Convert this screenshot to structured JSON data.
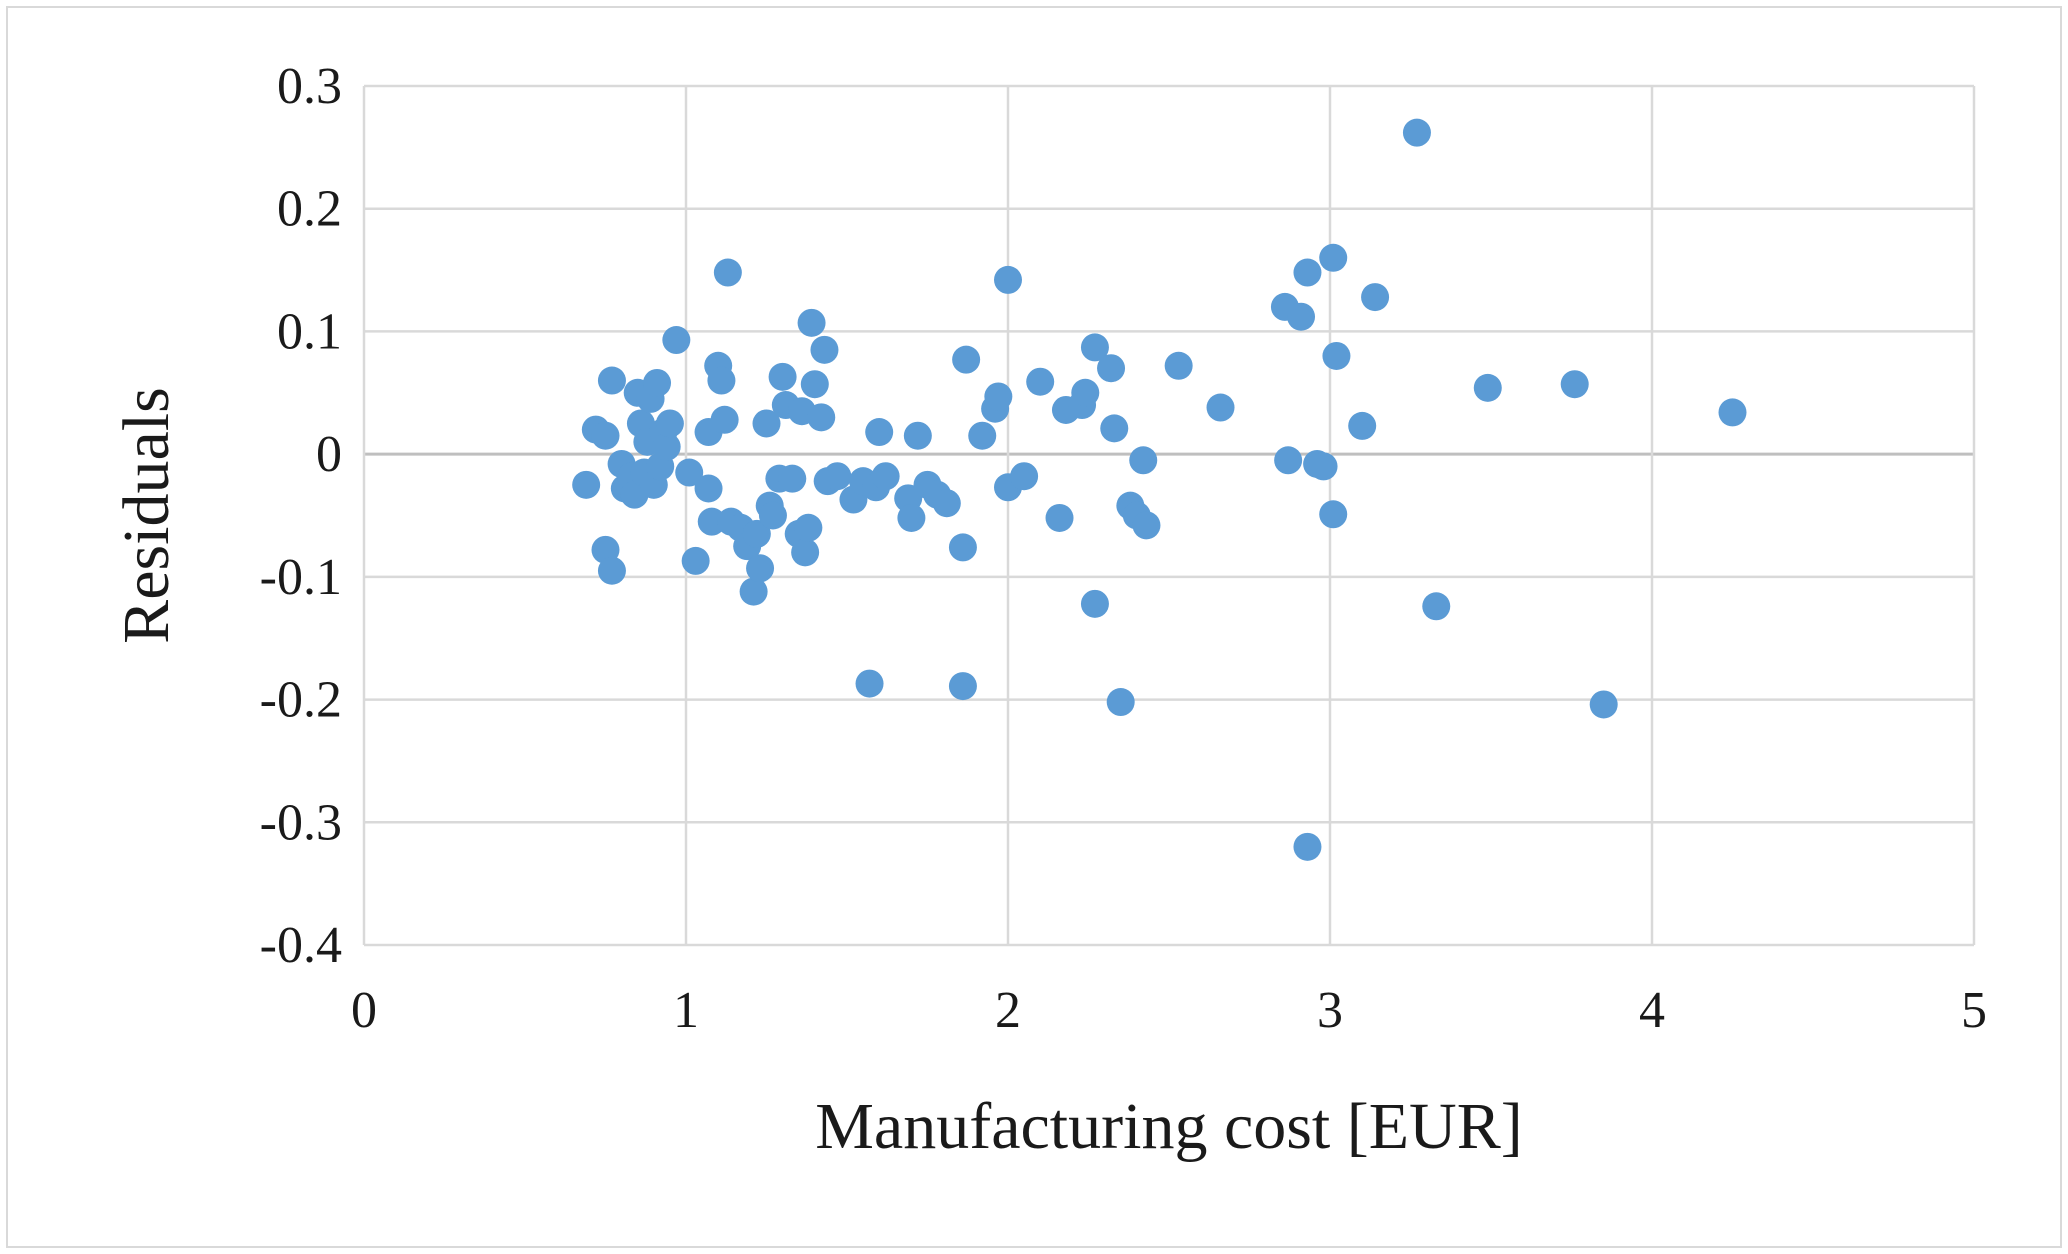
{
  "chart_data": {
    "type": "scatter",
    "title": "",
    "xlabel": "Manufacturing cost [EUR]",
    "ylabel": "Residuals",
    "xlim": [
      0,
      5
    ],
    "ylim": [
      -0.4,
      0.3
    ],
    "xticks": [
      0,
      1,
      2,
      3,
      4,
      5
    ],
    "yticks": [
      -0.4,
      -0.3,
      -0.2,
      -0.1,
      0,
      0.1,
      0.2,
      0.3
    ],
    "xtick_labels": [
      "0",
      "1",
      "2",
      "3",
      "4",
      "5"
    ],
    "ytick_labels": [
      "-0.4",
      "-0.3",
      "-0.2",
      "-0.1",
      "0",
      "0.1",
      "0.2",
      "0.3"
    ],
    "grid": true,
    "legend": "none",
    "colors": {
      "points": "#5b9bd5",
      "grid": "#d9d9d9",
      "zero_line": "#bfbfbf"
    },
    "points": [
      [
        0.69,
        -0.025
      ],
      [
        0.72,
        0.02
      ],
      [
        0.75,
        0.015
      ],
      [
        0.77,
        0.06
      ],
      [
        0.75,
        -0.078
      ],
      [
        0.77,
        -0.095
      ],
      [
        0.8,
        -0.008
      ],
      [
        0.81,
        -0.028
      ],
      [
        0.83,
        -0.018
      ],
      [
        0.84,
        -0.033
      ],
      [
        0.85,
        0.05
      ],
      [
        0.86,
        0.025
      ],
      [
        0.87,
        -0.015
      ],
      [
        0.88,
        0.01
      ],
      [
        0.89,
        0.045
      ],
      [
        0.9,
        -0.025
      ],
      [
        0.91,
        0.058
      ],
      [
        0.92,
        -0.01
      ],
      [
        0.93,
        0.018
      ],
      [
        0.94,
        0.006
      ],
      [
        0.95,
        0.025
      ],
      [
        0.97,
        0.093
      ],
      [
        1.01,
        -0.015
      ],
      [
        1.03,
        -0.087
      ],
      [
        1.07,
        0.018
      ],
      [
        1.07,
        -0.028
      ],
      [
        1.08,
        -0.055
      ],
      [
        1.1,
        0.072
      ],
      [
        1.11,
        0.06
      ],
      [
        1.12,
        0.028
      ],
      [
        1.13,
        0.148
      ],
      [
        1.14,
        -0.055
      ],
      [
        1.17,
        -0.06
      ],
      [
        1.19,
        -0.075
      ],
      [
        1.21,
        -0.112
      ],
      [
        1.22,
        -0.065
      ],
      [
        1.23,
        -0.093
      ],
      [
        1.25,
        0.025
      ],
      [
        1.26,
        -0.042
      ],
      [
        1.27,
        -0.05
      ],
      [
        1.29,
        -0.02
      ],
      [
        1.3,
        0.063
      ],
      [
        1.31,
        0.04
      ],
      [
        1.33,
        -0.02
      ],
      [
        1.35,
        -0.065
      ],
      [
        1.36,
        0.035
      ],
      [
        1.37,
        -0.08
      ],
      [
        1.38,
        -0.06
      ],
      [
        1.39,
        0.107
      ],
      [
        1.4,
        0.057
      ],
      [
        1.42,
        0.03
      ],
      [
        1.43,
        0.085
      ],
      [
        1.44,
        -0.022
      ],
      [
        1.47,
        -0.018
      ],
      [
        1.52,
        -0.037
      ],
      [
        1.55,
        -0.022
      ],
      [
        1.57,
        -0.187
      ],
      [
        1.59,
        -0.027
      ],
      [
        1.6,
        0.018
      ],
      [
        1.62,
        -0.018
      ],
      [
        1.69,
        -0.036
      ],
      [
        1.7,
        -0.052
      ],
      [
        1.72,
        0.015
      ],
      [
        1.75,
        -0.025
      ],
      [
        1.78,
        -0.033
      ],
      [
        1.81,
        -0.04
      ],
      [
        1.86,
        -0.076
      ],
      [
        1.86,
        -0.189
      ],
      [
        1.87,
        0.077
      ],
      [
        1.92,
        0.015
      ],
      [
        1.96,
        0.037
      ],
      [
        1.97,
        0.047
      ],
      [
        2.0,
        0.142
      ],
      [
        2.0,
        -0.027
      ],
      [
        2.05,
        -0.018
      ],
      [
        2.1,
        0.059
      ],
      [
        2.16,
        -0.052
      ],
      [
        2.18,
        0.036
      ],
      [
        2.23,
        0.04
      ],
      [
        2.24,
        0.05
      ],
      [
        2.27,
        0.087
      ],
      [
        2.27,
        -0.122
      ],
      [
        2.32,
        0.07
      ],
      [
        2.33,
        0.021
      ],
      [
        2.35,
        -0.202
      ],
      [
        2.38,
        -0.042
      ],
      [
        2.4,
        -0.05
      ],
      [
        2.42,
        -0.005
      ],
      [
        2.43,
        -0.058
      ],
      [
        2.53,
        0.072
      ],
      [
        2.66,
        0.038
      ],
      [
        2.86,
        0.12
      ],
      [
        2.87,
        -0.005
      ],
      [
        2.91,
        0.112
      ],
      [
        2.93,
        0.148
      ],
      [
        2.93,
        -0.32
      ],
      [
        2.96,
        -0.008
      ],
      [
        2.98,
        -0.01
      ],
      [
        3.01,
        0.16
      ],
      [
        3.01,
        -0.049
      ],
      [
        3.02,
        0.08
      ],
      [
        3.1,
        0.023
      ],
      [
        3.14,
        0.128
      ],
      [
        3.27,
        0.262
      ],
      [
        3.33,
        -0.124
      ],
      [
        3.49,
        0.054
      ],
      [
        3.76,
        0.057
      ],
      [
        3.85,
        -0.204
      ],
      [
        4.25,
        0.034
      ]
    ]
  }
}
